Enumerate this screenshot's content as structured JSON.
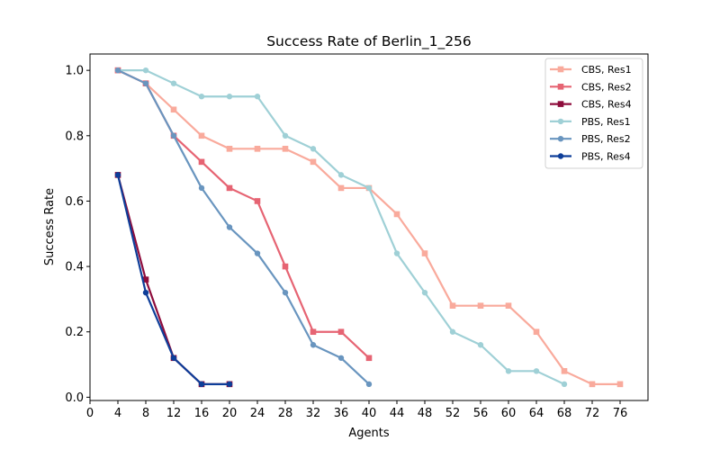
{
  "chart_data": {
    "type": "line",
    "title": "Success Rate of Berlin_1_256",
    "xlabel": "Agents",
    "ylabel": "Success Rate",
    "xlim": [
      0,
      80
    ],
    "ylim": [
      -0.01,
      1.05
    ],
    "xticks": [
      0,
      4,
      8,
      12,
      16,
      20,
      24,
      28,
      32,
      36,
      40,
      44,
      48,
      52,
      56,
      60,
      64,
      68,
      72,
      76
    ],
    "yticks": [
      0.0,
      0.2,
      0.4,
      0.6,
      0.8,
      1.0
    ],
    "ytick_labels": [
      "0.0",
      "0.2",
      "0.4",
      "0.6",
      "0.8",
      "1.0"
    ],
    "grid": false,
    "legend_position": "top-right",
    "series": [
      {
        "name": "CBS, Res1",
        "color": "#f9aa9c",
        "marker": "square",
        "x": [
          4,
          8,
          12,
          16,
          20,
          24,
          28,
          32,
          36,
          40,
          44,
          48,
          52,
          56,
          60,
          64,
          68,
          72,
          76
        ],
        "y": [
          1.0,
          0.96,
          0.88,
          0.8,
          0.76,
          0.76,
          0.76,
          0.72,
          0.64,
          0.64,
          0.56,
          0.44,
          0.28,
          0.28,
          0.28,
          0.2,
          0.08,
          0.04,
          0.04
        ]
      },
      {
        "name": "CBS, Res2",
        "color": "#e66473",
        "marker": "square",
        "x": [
          4,
          8,
          12,
          16,
          20,
          24,
          28,
          32,
          36,
          40
        ],
        "y": [
          1.0,
          0.96,
          0.8,
          0.72,
          0.64,
          0.6,
          0.4,
          0.2,
          0.2,
          0.12
        ]
      },
      {
        "name": "CBS, Res4",
        "color": "#8e0c3c",
        "marker": "square",
        "x": [
          4,
          8,
          12,
          16,
          20
        ],
        "y": [
          0.68,
          0.36,
          0.12,
          0.04,
          0.04
        ]
      },
      {
        "name": "PBS, Res1",
        "color": "#9fd0d6",
        "marker": "circle",
        "x": [
          4,
          8,
          12,
          16,
          20,
          24,
          28,
          32,
          36,
          40,
          44,
          48,
          52,
          56,
          60,
          64,
          68
        ],
        "y": [
          1.0,
          1.0,
          0.96,
          0.92,
          0.92,
          0.92,
          0.8,
          0.76,
          0.68,
          0.64,
          0.44,
          0.32,
          0.2,
          0.16,
          0.08,
          0.08,
          0.04
        ]
      },
      {
        "name": "PBS, Res2",
        "color": "#6995bf",
        "marker": "circle",
        "x": [
          4,
          8,
          12,
          16,
          20,
          24,
          28,
          32,
          36,
          40
        ],
        "y": [
          1.0,
          0.96,
          0.8,
          0.64,
          0.52,
          0.44,
          0.32,
          0.16,
          0.12,
          0.04
        ]
      },
      {
        "name": "PBS, Res4",
        "color": "#0e3e99",
        "marker": "circle",
        "x": [
          4,
          8,
          12,
          16,
          20
        ],
        "y": [
          0.68,
          0.32,
          0.12,
          0.04,
          0.04
        ]
      }
    ]
  }
}
